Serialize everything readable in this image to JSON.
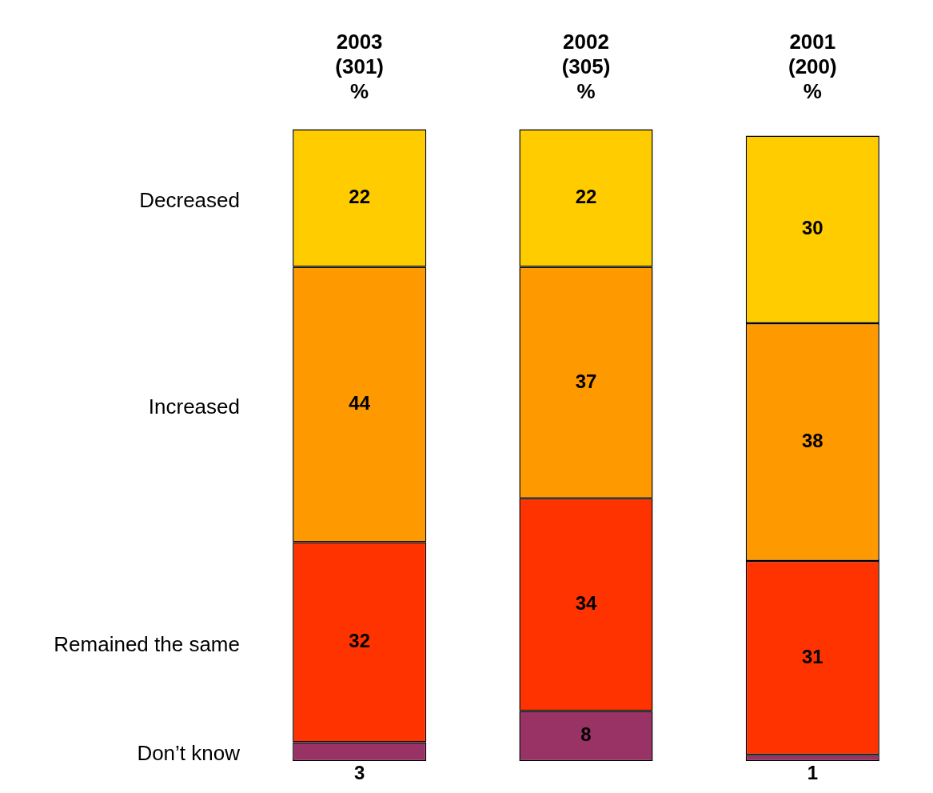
{
  "chart_data": {
    "type": "bar",
    "stacked": true,
    "categories": [
      "2003\n(301)\n%",
      "2002\n(305)\n%",
      "2001\n(200)\n%"
    ],
    "series": [
      {
        "name": "Don’t know",
        "color": "#993366",
        "values": [
          3,
          8,
          1
        ]
      },
      {
        "name": "Remained the same",
        "color": "#ff3300",
        "values": [
          32,
          34,
          31
        ]
      },
      {
        "name": "Increased",
        "color": "#ff9900",
        "values": [
          44,
          37,
          38
        ]
      },
      {
        "name": "Decreased",
        "color": "#ffcc00",
        "values": [
          22,
          22,
          30
        ]
      }
    ],
    "data_labels": true,
    "grid": false,
    "legend": false
  }
}
